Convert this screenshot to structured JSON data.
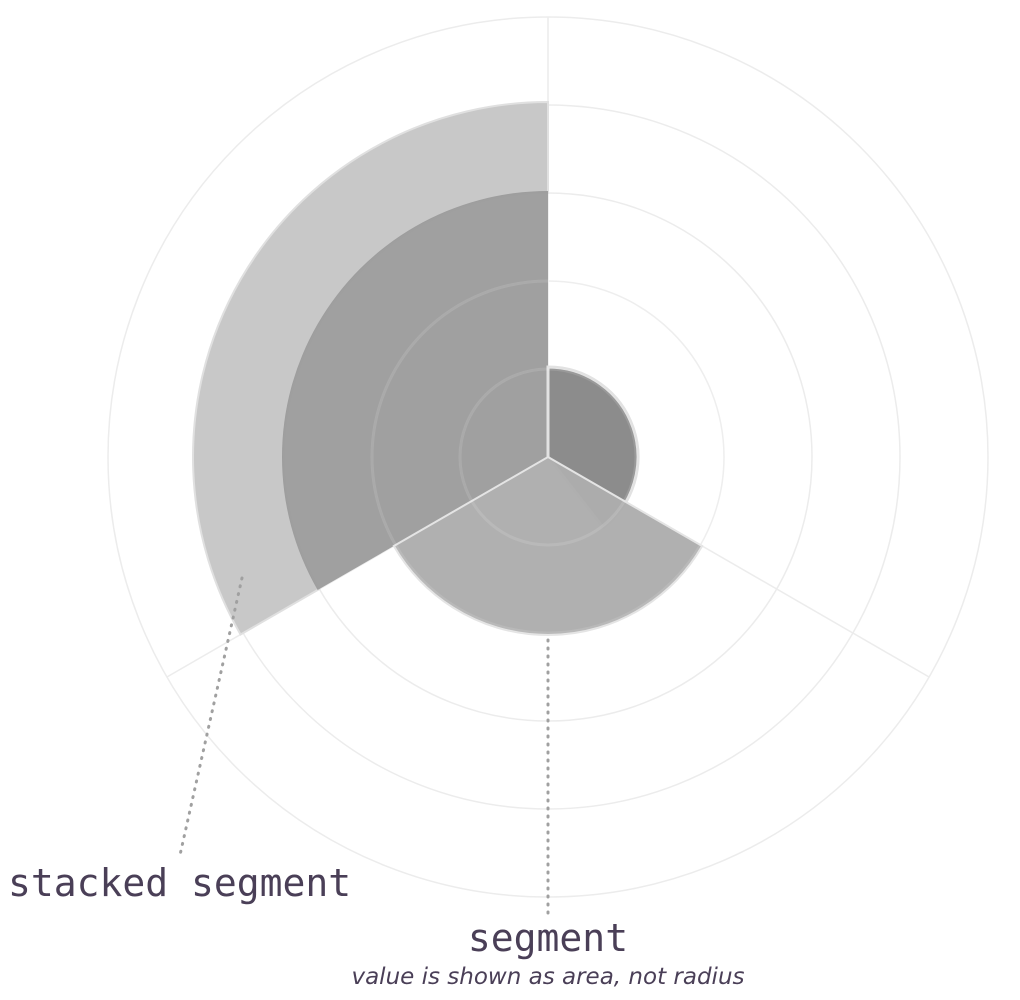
{
  "diagram": {
    "labels": {
      "stacked_segment": "stacked segment",
      "segment": "segment",
      "segment_note": "value is shown as area, not radius"
    },
    "colors": {
      "grid": "#ececec",
      "outer_stack": "#c8c8c8",
      "inner_stack": "#9b9b9b",
      "small_segment": "#8c8c8c",
      "bottom_segment": "#adadad",
      "leader": "#a0a0a0",
      "text": "#4a3f57"
    }
  }
}
